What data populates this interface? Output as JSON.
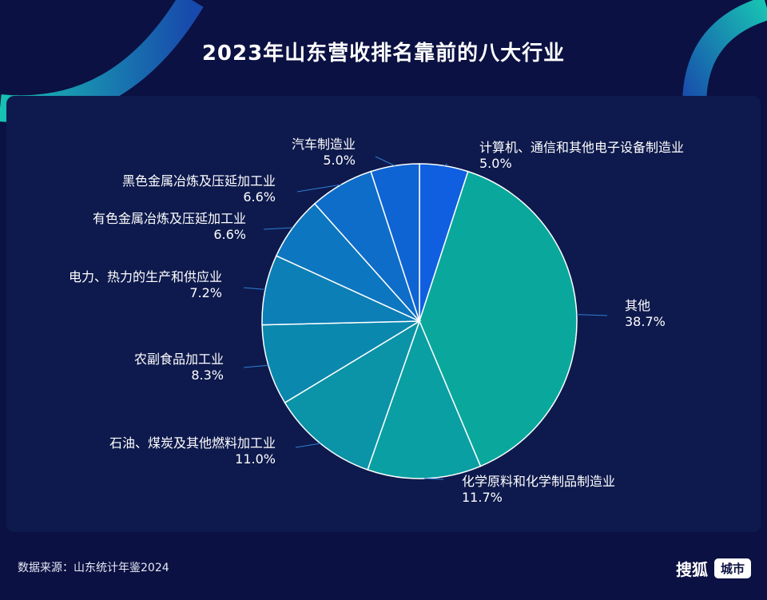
{
  "title": "2023年山东营收排名靠前的八大行业",
  "source": "数据来源：山东统计年鉴2024",
  "logo": {
    "main": "搜狐",
    "box": "城市"
  },
  "chart_data": {
    "type": "pie",
    "title": "2023年山东营收排名靠前的八大行业",
    "start": "12 o'clock, clockwise",
    "slices": [
      {
        "label": "计算机、通信和其他电子设备制造业",
        "value": 5.0,
        "display": "5.0%",
        "color": "#0f5fe0"
      },
      {
        "label": "其他",
        "value": 38.7,
        "display": "38.7%",
        "color": "#0aa89c"
      },
      {
        "label": "化学原料和化学制品制造业",
        "value": 11.7,
        "display": "11.7%",
        "color": "#0a9fa3"
      },
      {
        "label": "石油、煤炭及其他燃料加工业",
        "value": 11.0,
        "display": "11.0%",
        "color": "#0b93a8"
      },
      {
        "label": "农副食品加工业",
        "value": 8.3,
        "display": "8.3%",
        "color": "#0b88ad"
      },
      {
        "label": "电力、热力的生产和供应业",
        "value": 7.2,
        "display": "7.2%",
        "color": "#0c7fb6"
      },
      {
        "label": "有色金属冶炼及压延加工业",
        "value": 6.6,
        "display": "6.6%",
        "color": "#0d76c0"
      },
      {
        "label": "黑色金属冶炼及压延加工业",
        "value": 6.6,
        "display": "6.6%",
        "color": "#0e6dc9"
      },
      {
        "label": "汽车制造业",
        "value": 5.0,
        "display": "5.0%",
        "color": "#0f64d3"
      }
    ]
  }
}
